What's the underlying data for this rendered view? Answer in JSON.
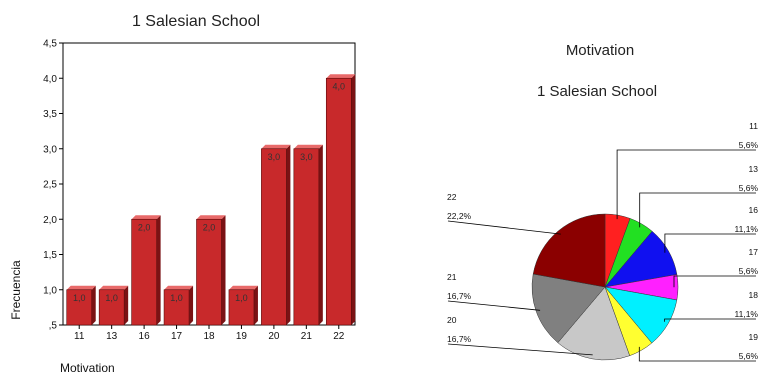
{
  "chart_data": [
    {
      "type": "bar",
      "title": "1 Salesian School",
      "xlabel": "Motivation",
      "ylabel": "Frecuencia",
      "categories": [
        "11",
        "13",
        "16",
        "17",
        "18",
        "19",
        "20",
        "21",
        "22"
      ],
      "values": [
        1.0,
        1.0,
        2.0,
        1.0,
        2.0,
        1.0,
        3.0,
        3.0,
        4.0
      ],
      "data_labels": [
        "1,0",
        "1,0",
        "2,0",
        "1,0",
        "2,0",
        "1,0",
        "3,0",
        "3,0",
        "4,0"
      ],
      "ylim": [
        0.5,
        4.5
      ],
      "yticks": [
        ",5",
        "1,0",
        "1,5",
        "2,0",
        "2,5",
        "3,0",
        "3,5",
        "4,0",
        "4,5"
      ],
      "bar_color": "#c8292b",
      "grid": false
    },
    {
      "type": "pie",
      "title": "Motivation",
      "subtitle": "1 Salesian School",
      "slices": [
        {
          "label": "11",
          "percent": "5,6%",
          "value": 5.6,
          "color": "#ff2020"
        },
        {
          "label": "13",
          "percent": "5,6%",
          "value": 5.6,
          "color": "#22e022"
        },
        {
          "label": "16",
          "percent": "11,1%",
          "value": 11.1,
          "color": "#1010f0"
        },
        {
          "label": "17",
          "percent": "5,6%",
          "value": 5.6,
          "color": "#ff20ff"
        },
        {
          "label": "18",
          "percent": "11,1%",
          "value": 11.1,
          "color": "#00f0ff"
        },
        {
          "label": "19",
          "percent": "5,6%",
          "value": 5.6,
          "color": "#ffff30"
        },
        {
          "label": "20",
          "percent": "16,7%",
          "value": 16.7,
          "color": "#c8c8c8"
        },
        {
          "label": "21",
          "percent": "16,7%",
          "value": 16.7,
          "color": "#808080"
        },
        {
          "label": "22",
          "percent": "22,2%",
          "value": 22.2,
          "color": "#8b0000"
        }
      ]
    }
  ]
}
